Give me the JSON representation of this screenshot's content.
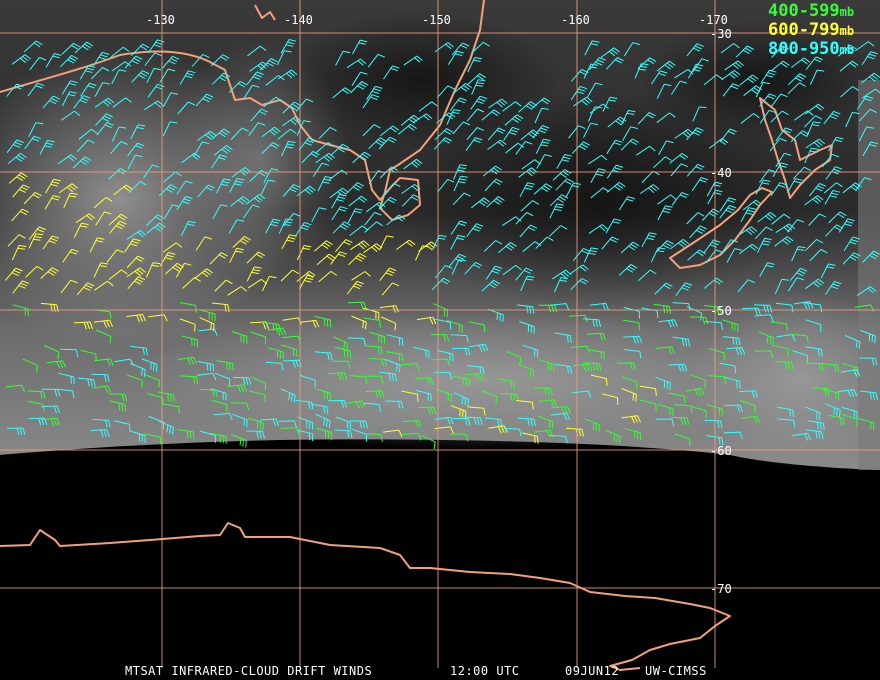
{
  "map": {
    "longitude_labels": [
      "-130",
      "-140",
      "-150",
      "-160",
      "-170"
    ],
    "latitude_labels": [
      "-30",
      "-40",
      "-50",
      "-60",
      "-70"
    ],
    "legend": [
      {
        "range": "400-599",
        "unit": "mb",
        "color": "#33ff33"
      },
      {
        "range": "600-799",
        "unit": "mb",
        "color": "#ffff33"
      },
      {
        "range": "800-950",
        "unit": "mb",
        "color": "#33ffff"
      }
    ],
    "footer": {
      "product": "MTSAT INFRARED-CLOUD DRIFT WINDS",
      "time": "12:00 UTC",
      "date": "09JUN12",
      "source": "UW-CIMSS"
    }
  }
}
